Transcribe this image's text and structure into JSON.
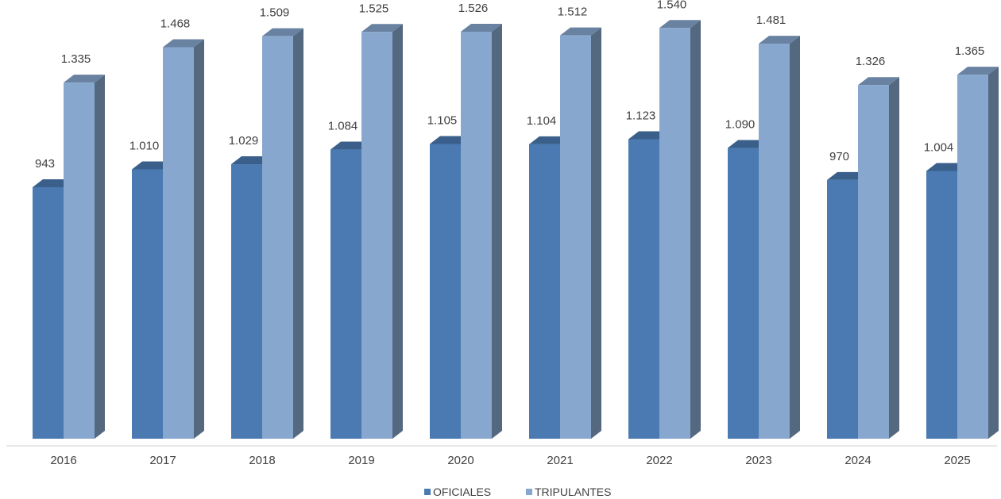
{
  "chart_data": {
    "type": "bar",
    "categories": [
      "2016",
      "2017",
      "2018",
      "2019",
      "2020",
      "2021",
      "2022",
      "2023",
      "2024",
      "2025"
    ],
    "series": [
      {
        "name": "OFICIALES",
        "values": [
          943,
          1010,
          1029,
          1084,
          1105,
          1104,
          1123,
          1090,
          970,
          1004
        ],
        "labels": [
          "943",
          "1.010",
          "1.029",
          "1.084",
          "1.105",
          "1.104",
          "1.123",
          "1.090",
          "970",
          "1.004"
        ],
        "color": "#4A7AB1"
      },
      {
        "name": "TRIPULANTES",
        "values": [
          1335,
          1468,
          1509,
          1525,
          1526,
          1512,
          1540,
          1481,
          1326,
          1365
        ],
        "labels": [
          "1.335",
          "1.468",
          "1.509",
          "1.525",
          "1.526",
          "1.512",
          "1.540",
          "1.481",
          "1.326",
          "1.365"
        ],
        "color": "#87A7CE"
      }
    ],
    "style": "3d-clustered-column",
    "ylim": [
      0,
      1600
    ],
    "grid": false,
    "legend": "bottom-center",
    "title": "",
    "xlabel": "",
    "ylabel": ""
  }
}
